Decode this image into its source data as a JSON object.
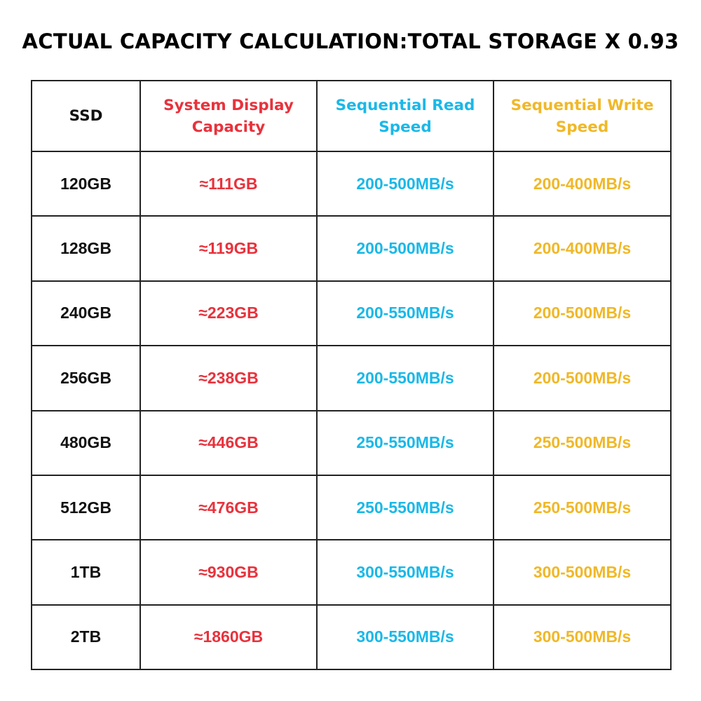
{
  "header": {
    "title": "ACTUAL CAPACITY CALCULATION:TOTAL STORAGE X 0.93"
  },
  "table": {
    "columns": [
      "SSD",
      "System Display Capacity",
      "Sequential Read Speed",
      "Sequential Write Speed"
    ],
    "rows": [
      [
        "120GB",
        "≈111GB",
        "200-500MB/s",
        "200-400MB/s"
      ],
      [
        "128GB",
        "≈119GB",
        "200-500MB/s",
        "200-400MB/s"
      ],
      [
        "240GB",
        "≈223GB",
        "200-550MB/s",
        "200-500MB/s"
      ],
      [
        "256GB",
        "≈238GB",
        "200-550MB/s",
        "200-500MB/s"
      ],
      [
        "480GB",
        "≈446GB",
        "250-550MB/s",
        "250-500MB/s"
      ],
      [
        "512GB",
        "≈476GB",
        "250-550MB/s",
        "250-500MB/s"
      ],
      [
        "1TB",
        "≈930GB",
        "300-550MB/s",
        "300-500MB/s"
      ],
      [
        "2TB",
        "≈1860GB",
        "300-550MB/s",
        "300-500MB/s"
      ]
    ]
  }
}
